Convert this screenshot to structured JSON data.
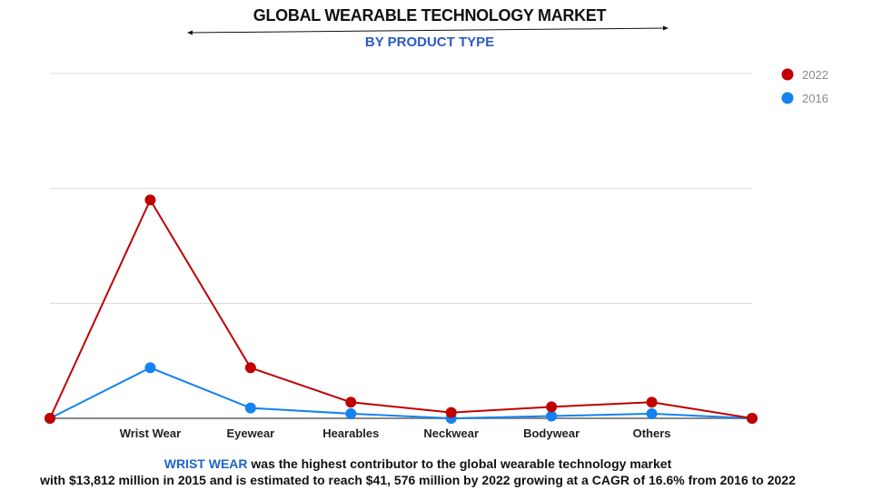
{
  "chart_data": {
    "type": "line",
    "title": "GLOBAL WEARABLE TECHNOLOGY MARKET",
    "subtitle": "BY PRODUCT TYPE",
    "categories": [
      "",
      "Wrist Wear",
      "Eyewear",
      "Hearables",
      "Neckwear",
      "Bodywear",
      "Others",
      ""
    ],
    "series": [
      {
        "name": "2022",
        "color": "#c00000",
        "values": [
          0,
          1.9,
          0.44,
          0.14,
          0.05,
          0.1,
          0.14,
          0
        ]
      },
      {
        "name": "2016",
        "color": "#1482f0",
        "values": [
          0,
          0.44,
          0.09,
          0.04,
          0.0,
          0.02,
          0.04,
          0
        ]
      }
    ],
    "ylim": [
      0,
      3
    ],
    "y_gridlines": [
      1,
      2,
      3
    ],
    "y_tick_labels_shown": false,
    "grid": true,
    "legend_placement": "top-right"
  },
  "caption": {
    "highlight": "WRIST WEAR",
    "line1_rest": " was the highest contributor to the global wearable technology market",
    "line2": "with $13,812 million in 2015 and is estimated to reach $41, 576 million by 2022 growing at a CAGR of 16.6% from 2016 to 2022"
  }
}
